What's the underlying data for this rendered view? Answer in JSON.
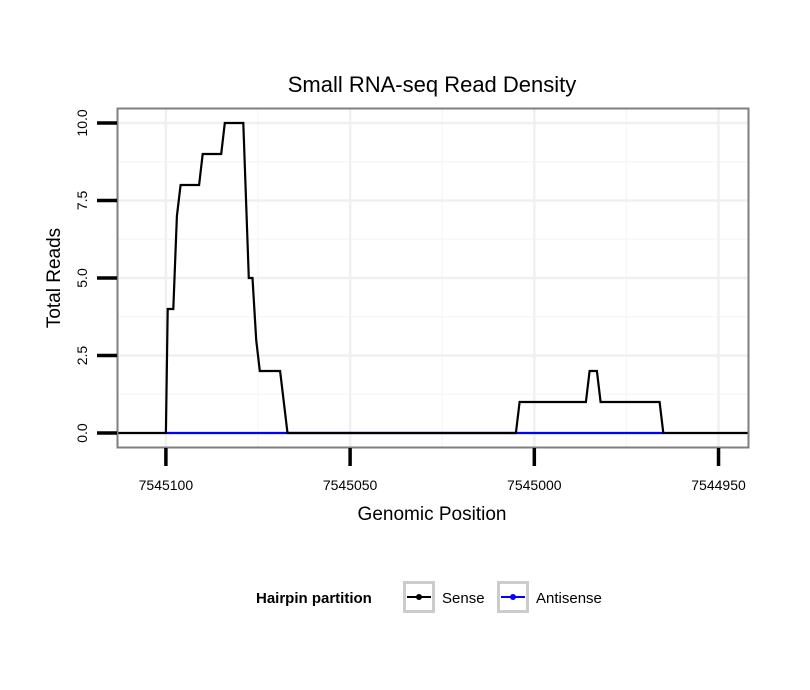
{
  "chart_data": {
    "type": "line",
    "title": "Small RNA-seq Read Density",
    "xlabel": "Genomic Position",
    "ylabel": "Total Reads",
    "x_reversed": true,
    "xlim": [
      7545113,
      7544942
    ],
    "ylim": [
      -0.45,
      10.45
    ],
    "x_ticks": [
      7545100,
      7545050,
      7545000,
      7544950
    ],
    "y_ticks": [
      0.0,
      2.5,
      5.0,
      7.5,
      10.0
    ],
    "y_tick_labels": [
      "0.0",
      "2.5",
      "5.0",
      "7.5",
      "10.0"
    ],
    "grid": true,
    "legend": {
      "title": "Hairpin partition",
      "position": "bottom"
    },
    "series": [
      {
        "name": "Sense",
        "color": "#000000",
        "x": [
          7545113,
          7545100,
          7545099.5,
          7545098,
          7545097,
          7545096,
          7545091,
          7545090,
          7545085,
          7545084,
          7545079,
          7545077.5,
          7545076.5,
          7545075.5,
          7545074.5,
          7545073.5,
          7545069,
          7545067,
          7545005,
          7545004,
          7544986,
          7544985,
          7544983,
          7544982,
          7544966,
          7544965,
          7544942
        ],
        "values": [
          0,
          0,
          4,
          4,
          7,
          8,
          8,
          9,
          9,
          10,
          10,
          5,
          5,
          3,
          2,
          2,
          2,
          0,
          0,
          1,
          1,
          2,
          2,
          1,
          1,
          0,
          0
        ]
      },
      {
        "name": "Antisense",
        "color": "#0000ff",
        "x": [
          7545100,
          7545067,
          7545005,
          7544965
        ],
        "values": [
          0,
          0,
          0,
          0
        ]
      }
    ]
  }
}
